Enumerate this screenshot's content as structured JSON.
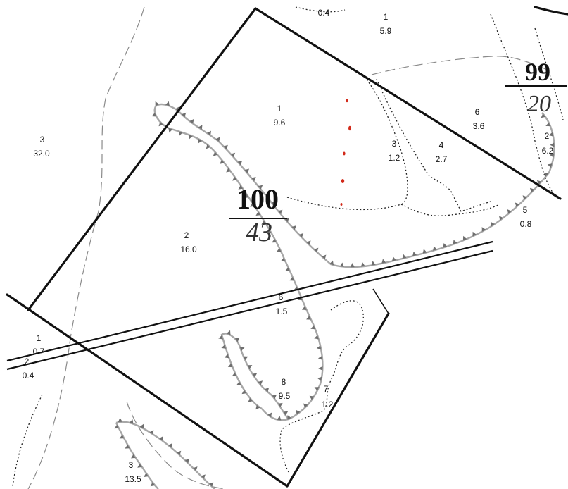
{
  "quarters": [
    {
      "id": "q100",
      "number": "100",
      "area": "43"
    },
    {
      "id": "q99",
      "number": "99",
      "area": "20"
    }
  ],
  "plots": [
    {
      "id": "p-top-1",
      "num": "1",
      "area": "5.9"
    },
    {
      "id": "p-top-04",
      "num": "",
      "area": "0.4"
    },
    {
      "id": "p-1",
      "num": "1",
      "area": "9.6"
    },
    {
      "id": "p-2",
      "num": "2",
      "area": "16.0"
    },
    {
      "id": "p-3",
      "num": "3",
      "area": "1.2"
    },
    {
      "id": "p-4",
      "num": "4",
      "area": "2.7"
    },
    {
      "id": "p-5",
      "num": "5",
      "area": "0.8"
    },
    {
      "id": "p-6",
      "num": "6",
      "area": "1.5"
    },
    {
      "id": "p-6b",
      "num": "6",
      "area": "3.6"
    },
    {
      "id": "p-7",
      "num": "7",
      "area": "1.2"
    },
    {
      "id": "p-8",
      "num": "8",
      "area": "9.5"
    },
    {
      "id": "p-99-2",
      "num": "2",
      "area": "6.2"
    },
    {
      "id": "p-left-3",
      "num": "3",
      "area": "32.0"
    },
    {
      "id": "p-left-1",
      "num": "1",
      "area": "0.7"
    },
    {
      "id": "p-left-2",
      "num": "2",
      "area": "0.4"
    },
    {
      "id": "p-bottom-3",
      "num": "3",
      "area": "13.5"
    }
  ],
  "colors": {
    "boundary": "#111111",
    "contour": "#9a9a9a",
    "ticks": "#6f6f6f",
    "dotted": "#222222",
    "dashed": "#8a8a8a",
    "red_marks": "#d22a1a"
  }
}
